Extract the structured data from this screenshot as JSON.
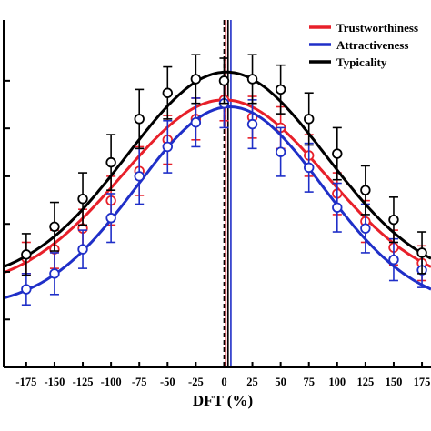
{
  "chart_data": {
    "type": "line",
    "xlabel": "DFT (%)",
    "ylabel": "",
    "xlim": [
      -195,
      183
    ],
    "ylim": [
      0,
      100
    ],
    "x_ticks": [
      -175,
      -150,
      -125,
      -100,
      -75,
      -50,
      -25,
      0,
      25,
      50,
      75,
      100,
      125,
      150,
      175
    ],
    "x_tick_labels": [
      "-175",
      "-150",
      "-125",
      "-100",
      "-75",
      "-50",
      "-25",
      "0",
      "25",
      "50",
      "75",
      "100",
      "125",
      "150",
      "175"
    ],
    "y_ticks": [
      13.8,
      27.5,
      41.3,
      55.0,
      68.8,
      82.5
    ],
    "legend_position": "top-right",
    "grid": false,
    "reference_lines": [
      {
        "x": 0,
        "color": "#000000",
        "style": "dashed"
      },
      {
        "x": 1.5,
        "color": "#e8202a",
        "style": "solid"
      },
      {
        "x": 3.5,
        "color": "#000000",
        "style": "solid"
      },
      {
        "x": 6,
        "color": "#1f2fc8",
        "style": "solid"
      }
    ],
    "series": [
      {
        "name": "Trustworthiness",
        "color": "#e8202a",
        "x": [
          -175,
          -150,
          -125,
          -100,
          -75,
          -50,
          -25,
          0,
          25,
          50,
          75,
          100,
          125,
          150,
          175
        ],
        "y": [
          31.5,
          34,
          40,
          48,
          56.5,
          65.5,
          71.5,
          77,
          72,
          69,
          61,
          50,
          42,
          34.5,
          30
        ],
        "err": [
          4.5,
          5.5,
          5.5,
          7,
          7,
          7,
          6,
          6,
          6,
          6,
          6,
          6,
          6,
          5,
          5
        ],
        "fit_peak": 77,
        "fit_center": 0,
        "fit_width": 90,
        "fit_base": 22
      },
      {
        "name": "Attractiveness",
        "color": "#1f2fc8",
        "x": [
          -175,
          -150,
          -125,
          -100,
          -75,
          -50,
          -25,
          0,
          25,
          50,
          75,
          100,
          125,
          150,
          175
        ],
        "y": [
          22.5,
          27,
          34,
          43,
          55,
          63.5,
          70.5,
          76,
          70,
          62,
          57.5,
          46,
          40,
          31,
          28
        ],
        "err": [
          4.5,
          6,
          5.5,
          7,
          8,
          7.5,
          7,
          7,
          7,
          7,
          7,
          7,
          7,
          6,
          5
        ],
        "fit_peak": 75,
        "fit_center": 5,
        "fit_width": 82,
        "fit_base": 17
      },
      {
        "name": "Typicality",
        "color": "#000000",
        "x": [
          -175,
          -150,
          -125,
          -100,
          -75,
          -50,
          -25,
          0,
          25,
          50,
          75,
          100,
          125,
          150,
          175
        ],
        "y": [
          32.5,
          40.5,
          48.5,
          59,
          71.5,
          79,
          83,
          82.5,
          83,
          80,
          71.5,
          61.5,
          51,
          42.5,
          33
        ],
        "err": [
          6,
          7,
          7.5,
          8,
          8.5,
          7.5,
          7,
          6.5,
          7,
          7,
          7.5,
          7.5,
          7,
          6.5,
          6
        ],
        "fit_peak": 85,
        "fit_center": 2,
        "fit_width": 88,
        "fit_base": 24
      }
    ]
  }
}
